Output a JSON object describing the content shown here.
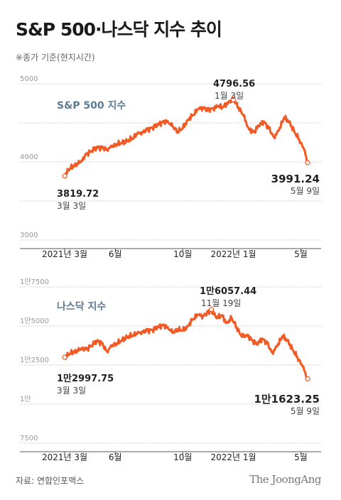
{
  "title": "S&P 500·나스닥 지수 추이",
  "subtitle": "※종가 기준(현지시간)",
  "source": "자료: 연합인포맥스",
  "brand": "The JoongAng",
  "colors": {
    "line": "#f15a24",
    "grid": "#c9c9c9",
    "series_label": "#5b7b95"
  },
  "chart_data": [
    {
      "type": "line",
      "series_name": "S&P 500 지수",
      "yticks": [
        {
          "value": 5000,
          "label": "5000"
        },
        {
          "value": 4500,
          "label": ""
        },
        {
          "value": 4000,
          "label": "4000"
        },
        {
          "value": 3500,
          "label": ""
        },
        {
          "value": 3000,
          "label": "3000"
        }
      ],
      "ylim": [
        3000,
        5000
      ],
      "x_range": [
        0,
        14.3
      ],
      "xticks": [
        {
          "pos": 2.0,
          "label": "2021년 3월"
        },
        {
          "pos": 5.0,
          "label": "6월"
        },
        {
          "pos": 9.0,
          "label": "10월"
        },
        {
          "pos": 12.0,
          "label": "2022년 1월"
        },
        {
          "pos": 16.0,
          "label": "5월"
        }
      ],
      "x": [
        2.0,
        2.2,
        2.5,
        2.8,
        3.0,
        3.3,
        3.6,
        3.9,
        4.2,
        4.5,
        4.8,
        5.1,
        5.4,
        5.7,
        6.0,
        6.3,
        6.6,
        6.9,
        7.2,
        7.5,
        7.8,
        8.1,
        8.4,
        8.7,
        9.0,
        9.3,
        9.6,
        9.9,
        10.2,
        10.5,
        10.8,
        11.1,
        11.4,
        11.7,
        12.0,
        12.3,
        12.6,
        12.9,
        13.2,
        13.5,
        13.8,
        14.1,
        14.4,
        14.7,
        15.0,
        15.3,
        15.6,
        15.9,
        16.2,
        16.4
      ],
      "y": [
        3819.72,
        3890,
        3950,
        3975,
        4020,
        4100,
        4140,
        4185,
        4180,
        4165,
        4190,
        4230,
        4245,
        4270,
        4300,
        4355,
        4385,
        4410,
        4440,
        4470,
        4510,
        4525,
        4450,
        4390,
        4430,
        4540,
        4600,
        4670,
        4700,
        4660,
        4690,
        4710,
        4700,
        4770,
        4796.56,
        4700,
        4590,
        4430,
        4380,
        4460,
        4520,
        4430,
        4320,
        4400,
        4570,
        4520,
        4390,
        4290,
        4150,
        3991.24
      ],
      "annotations": [
        {
          "value": "3819.72",
          "date": "3월 3일"
        },
        {
          "value": "4796.56",
          "date": "1월 3일"
        },
        {
          "value": "3991.24",
          "date": "5월 9일"
        }
      ]
    },
    {
      "type": "line",
      "series_name": "나스닥 지수",
      "yticks": [
        {
          "value": 17500,
          "label": "1만7500"
        },
        {
          "value": 15000,
          "label": "1만5000"
        },
        {
          "value": 12500,
          "label": "1만2500"
        },
        {
          "value": 10000,
          "label": "1만"
        },
        {
          "value": 7500,
          "label": "7500"
        }
      ],
      "ylim": [
        7500,
        17500
      ],
      "x": [
        2.0,
        2.2,
        2.5,
        2.8,
        3.0,
        3.3,
        3.6,
        3.9,
        4.2,
        4.5,
        4.8,
        5.1,
        5.4,
        5.7,
        6.0,
        6.3,
        6.6,
        6.9,
        7.2,
        7.5,
        7.8,
        8.1,
        8.4,
        8.7,
        9.0,
        9.3,
        9.6,
        9.9,
        10.2,
        10.5,
        10.7,
        11.0,
        11.3,
        11.6,
        11.9,
        12.2,
        12.5,
        12.8,
        13.1,
        13.4,
        13.7,
        14.0,
        14.3,
        14.6,
        14.9,
        15.2,
        15.5,
        15.8,
        16.1,
        16.4
      ],
      "y": [
        12997.75,
        13150,
        13350,
        13400,
        13600,
        13500,
        13750,
        14050,
        13900,
        13400,
        13700,
        13900,
        14100,
        14300,
        14400,
        14500,
        14650,
        14700,
        14750,
        14900,
        15050,
        14950,
        14550,
        14800,
        14700,
        15000,
        15450,
        15700,
        15650,
        15850,
        16057.44,
        15500,
        15700,
        15200,
        15500,
        14900,
        14300,
        14450,
        14100,
        13800,
        14200,
        13900,
        13300,
        13700,
        14350,
        14100,
        13500,
        13000,
        12400,
        11623.25
      ],
      "annotations": [
        {
          "value": "1만2997.75",
          "date": "3월 3일"
        },
        {
          "value": "1만6057.44",
          "date": "11월 19일"
        },
        {
          "value": "1만1623.25",
          "date": "5월 9일"
        }
      ]
    }
  ]
}
